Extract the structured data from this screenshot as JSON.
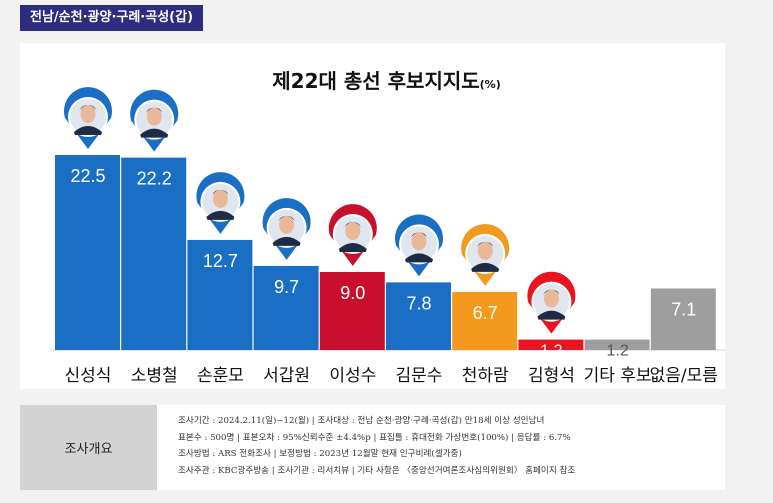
{
  "region_tag": "전남/순천·광양·구례·곡성(갑)",
  "chart_data": {
    "type": "bar",
    "title": "제22대 총선 후보지지도",
    "title_unit": "(%)",
    "categories": [
      "신성식",
      "소병철",
      "손훈모",
      "서갑원",
      "이성수",
      "김문수",
      "천하람",
      "김형석",
      "기타 후보",
      "없음/모름"
    ],
    "values": [
      22.5,
      22.2,
      12.7,
      9.7,
      9.0,
      7.8,
      6.7,
      1.2,
      1.2,
      7.1
    ],
    "value_labels": [
      "22.5",
      "22.2",
      "12.7",
      "9.7",
      "9.0",
      "7.8",
      "6.7",
      "1.2",
      "1.2",
      "7.1"
    ],
    "bar_colors": [
      "#1a6fc5",
      "#1a6fc5",
      "#1a6fc5",
      "#1a6fc5",
      "#c8102e",
      "#1a6fc5",
      "#f39a1e",
      "#e8141e",
      "#9e9e9e",
      "#9e9e9e"
    ],
    "label_colors": [
      "#ffffff",
      "#ffffff",
      "#ffffff",
      "#ffffff",
      "#ffffff",
      "#ffffff",
      "#ffffff",
      "#ffffff",
      "#555555",
      "#ffffff"
    ],
    "pin_colors": [
      "#1a6fc5",
      "#1a6fc5",
      "#1a6fc5",
      "#1a6fc5",
      "#c8102e",
      "#1a6fc5",
      "#f39a1e",
      "#e8141e",
      null,
      null
    ],
    "ylim": [
      0,
      25
    ],
    "grid": false,
    "legend": "none"
  },
  "survey": {
    "label": "조사개요",
    "lines": [
      "조사기간 : 2024.2.11(일)~12(월)  |  조사대상 : 전남 순천·광양·구례·곡성(갑) 만18세 이상 성인남녀",
      "표본수 : 500명  |  표본오차 : 95%신뢰수준 ±4.4%p  |  표집틀 : 휴대전화 가상번호(100%)  |  응답률 : 6.7%",
      "조사방법 : ARS 전화조사  |  보정방법 : 2023년 12월말 현재 인구비례(셀가중)",
      "조사주관 : KBC광주방송  |  조사기관 : 리서치뷰  |  기타 사항은 〈중앙선거여론조사심의위원회〉 홈페이지 참조"
    ]
  }
}
